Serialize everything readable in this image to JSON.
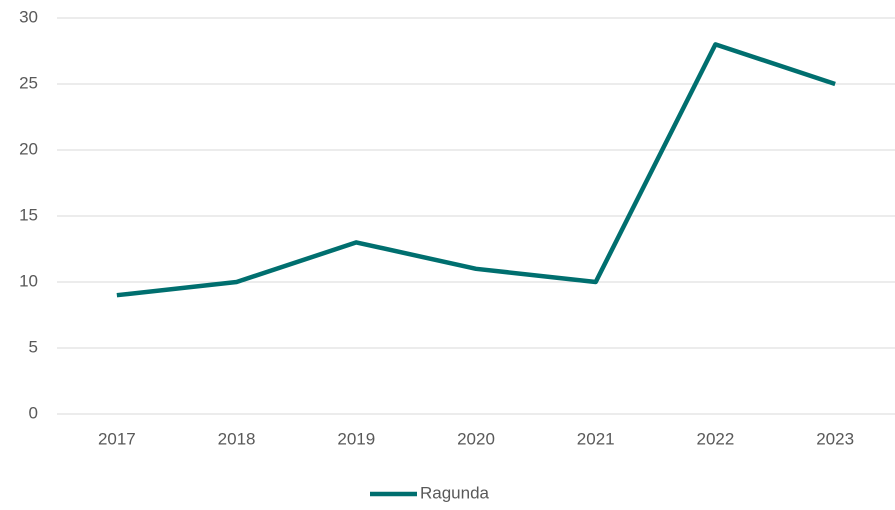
{
  "chart_data": {
    "type": "line",
    "categories": [
      "2017",
      "2018",
      "2019",
      "2020",
      "2021",
      "2022",
      "2023"
    ],
    "series": [
      {
        "name": "Ragunda",
        "color": "#006f6f",
        "values": [
          9,
          10,
          13,
          11,
          10,
          28,
          25
        ]
      }
    ],
    "ylim": [
      0,
      30
    ],
    "yticks": [
      0,
      5,
      10,
      15,
      20,
      25,
      30
    ],
    "grid": true,
    "legend": "bottom"
  }
}
